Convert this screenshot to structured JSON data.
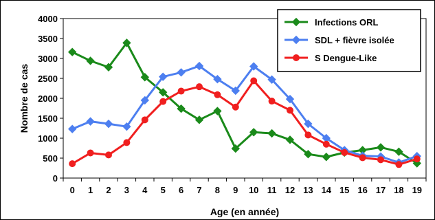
{
  "chart_data": {
    "type": "line",
    "title": "",
    "xlabel": "Age (en année)",
    "ylabel": "Nombre de cas",
    "x": [
      0,
      1,
      2,
      3,
      4,
      5,
      6,
      7,
      8,
      9,
      10,
      11,
      12,
      13,
      14,
      15,
      16,
      17,
      18,
      19
    ],
    "ylim": [
      0,
      4000
    ],
    "yticks": [
      0,
      500,
      1000,
      1500,
      2000,
      2500,
      3000,
      3500,
      4000
    ],
    "grid": false,
    "legend_position": "top-right",
    "series": [
      {
        "name": "Infections ORL",
        "color": "#1a8a1a",
        "marker": "diamond",
        "values": [
          3160,
          2940,
          2780,
          3390,
          2530,
          2150,
          1740,
          1460,
          1680,
          740,
          1150,
          1120,
          960,
          600,
          530,
          640,
          700,
          770,
          660,
          370
        ]
      },
      {
        "name": "SDL + fièvre isolée",
        "color": "#4d7ff0",
        "marker": "diamond",
        "values": [
          1230,
          1420,
          1360,
          1290,
          1950,
          2540,
          2650,
          2810,
          2480,
          2190,
          2800,
          2470,
          1980,
          1360,
          1000,
          700,
          560,
          540,
          390,
          550
        ]
      },
      {
        "name": "S Dengue-Like",
        "color": "#f01f1f",
        "marker": "circle",
        "values": [
          360,
          630,
          580,
          890,
          1460,
          1920,
          2180,
          2290,
          2090,
          1780,
          2440,
          1930,
          1700,
          1080,
          850,
          640,
          510,
          460,
          340,
          480
        ]
      }
    ]
  }
}
